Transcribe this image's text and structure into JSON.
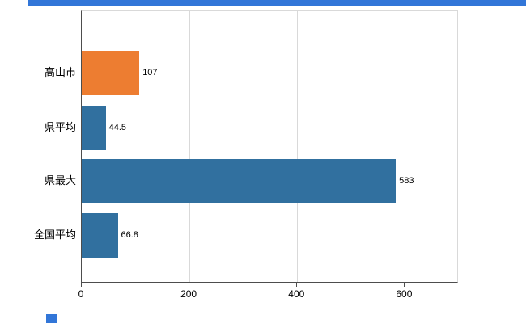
{
  "chart_data": {
    "type": "bar",
    "orientation": "horizontal",
    "title": "",
    "xlabel": "",
    "ylabel": "",
    "categories": [
      "高山市",
      "県平均",
      "県最大",
      "全国平均"
    ],
    "values": [
      107,
      44.5,
      583,
      66.8
    ],
    "value_labels": [
      "107",
      "44.5",
      "583",
      "66.8"
    ],
    "bar_colors": [
      "#ed7d31",
      "#31709f",
      "#31709f",
      "#31709f"
    ],
    "xlim": [
      0,
      700
    ],
    "x_ticks": [
      0,
      200,
      400,
      600
    ],
    "x_tick_labels": [
      "0",
      "200",
      "400",
      "600"
    ],
    "grid": true,
    "legend": false,
    "axis_color": "#4d4d4d",
    "gridline_color": "#d9d9d9",
    "label_color": "#000000"
  },
  "decor": {
    "top_accent_color": "#3276d8",
    "corner_accent_color": "#3276d8"
  }
}
